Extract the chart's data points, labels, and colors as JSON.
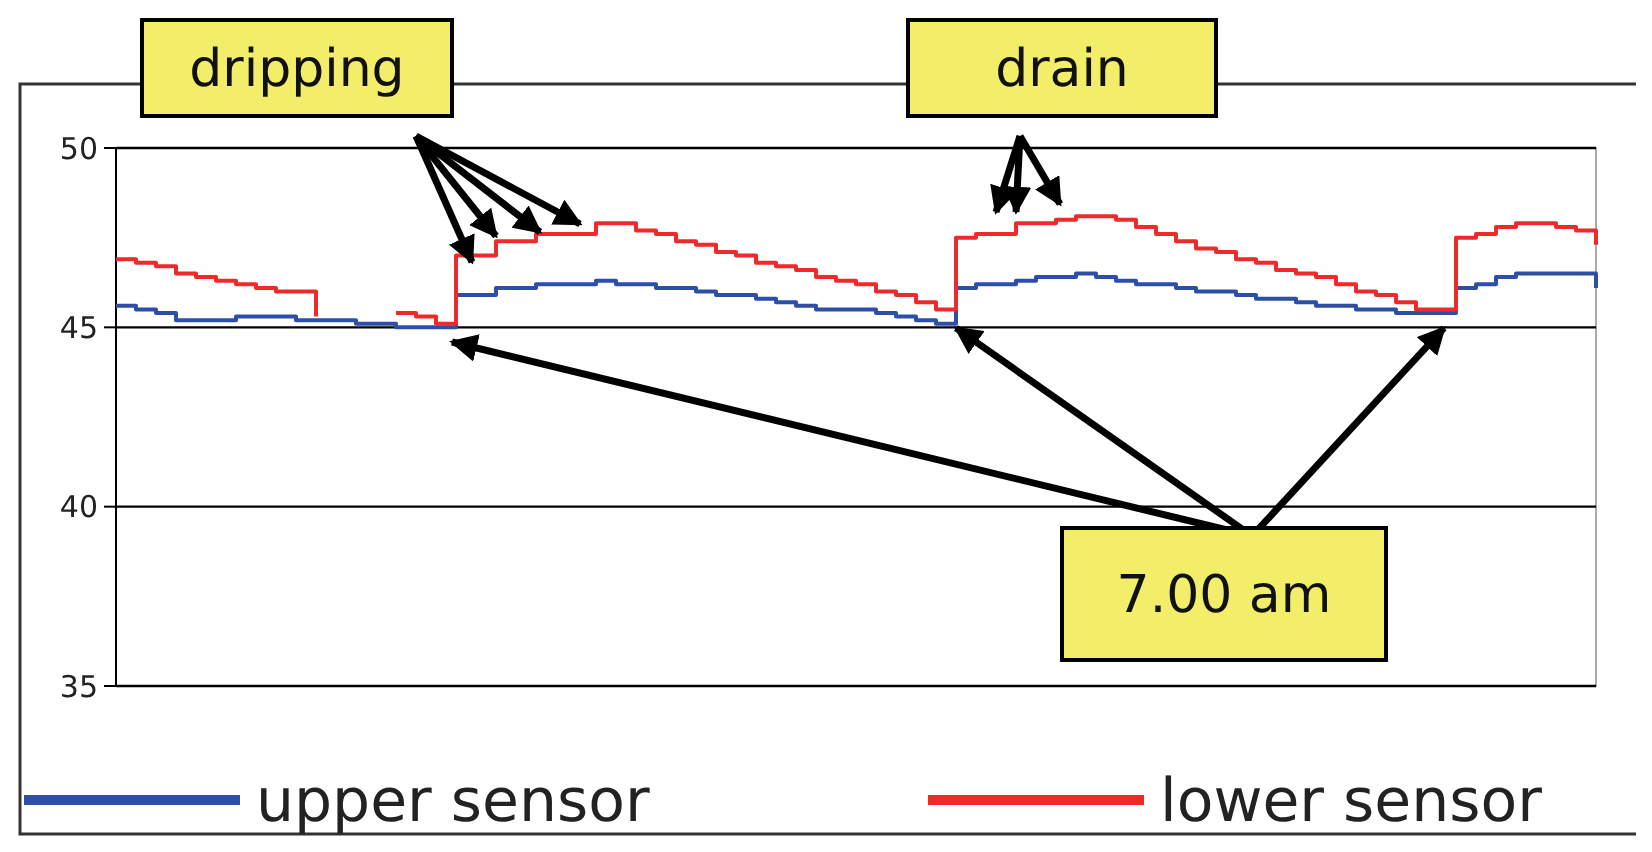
{
  "chart_data": {
    "type": "step",
    "categories": [
      null,
      null,
      null,
      null,
      null,
      null,
      null,
      null,
      null,
      null,
      null,
      null,
      null,
      null,
      null,
      null,
      null,
      null,
      null,
      null,
      null,
      null,
      null,
      null,
      null,
      null,
      null,
      null,
      null,
      null,
      null,
      null,
      null,
      null,
      null,
      null,
      null,
      null,
      null,
      null,
      null,
      null,
      null,
      null,
      null,
      null,
      null,
      null,
      null,
      null,
      null,
      null,
      null,
      null,
      null,
      null,
      null,
      null,
      null,
      null,
      null,
      null,
      null,
      null,
      null,
      null,
      null,
      null,
      null,
      null,
      null,
      null,
      null,
      null,
      null
    ],
    "series": [
      {
        "name": "upper sensor",
        "color": "#2e4fa8",
        "values": [
          45.6,
          45.5,
          45.4,
          45.2,
          45.2,
          45.2,
          45.3,
          45.3,
          45.3,
          45.2,
          45.2,
          45.2,
          45.1,
          45.1,
          45.0,
          45.0,
          45.0,
          45.9,
          45.9,
          46.1,
          46.1,
          46.2,
          46.2,
          46.2,
          46.3,
          46.2,
          46.2,
          46.1,
          46.1,
          46.0,
          45.9,
          45.9,
          45.8,
          45.7,
          45.6,
          45.5,
          45.5,
          45.5,
          45.4,
          45.3,
          45.2,
          45.1,
          46.1,
          46.2,
          46.2,
          46.3,
          46.4,
          46.4,
          46.5,
          46.4,
          46.3,
          46.2,
          46.2,
          46.1,
          46.0,
          46.0,
          45.9,
          45.8,
          45.8,
          45.7,
          45.6,
          45.6,
          45.5,
          45.5,
          45.4,
          45.4,
          45.4,
          46.1,
          46.2,
          46.4,
          46.5,
          46.5,
          46.5,
          46.5,
          46.1
        ]
      },
      {
        "name": "lower sensor",
        "color": "#ee2a2a",
        "values": [
          46.9,
          46.8,
          46.7,
          46.5,
          46.4,
          46.3,
          46.2,
          46.1,
          46.0,
          46.0,
          45.3,
          null,
          null,
          null,
          45.4,
          45.3,
          45.1,
          47.0,
          47.0,
          47.4,
          47.4,
          47.6,
          47.6,
          47.6,
          47.9,
          47.9,
          47.7,
          47.6,
          47.4,
          47.3,
          47.1,
          47.0,
          46.8,
          46.7,
          46.6,
          46.4,
          46.3,
          46.2,
          46.0,
          45.9,
          45.7,
          45.5,
          47.5,
          47.6,
          47.6,
          47.9,
          47.9,
          48.0,
          48.1,
          48.1,
          48.0,
          47.8,
          47.6,
          47.4,
          47.2,
          47.1,
          46.9,
          46.8,
          46.6,
          46.5,
          46.4,
          46.2,
          46.0,
          45.9,
          45.7,
          45.5,
          45.5,
          47.5,
          47.6,
          47.8,
          47.9,
          47.9,
          47.8,
          47.7,
          47.3
        ]
      }
    ],
    "ylim": [
      35,
      50
    ],
    "yticks": [
      35,
      40,
      45,
      50
    ],
    "grid": "y",
    "legend": "bottom",
    "tick_labels": "y",
    "annotations": [
      "dripping",
      "drain",
      "7.00 am"
    ]
  }
}
